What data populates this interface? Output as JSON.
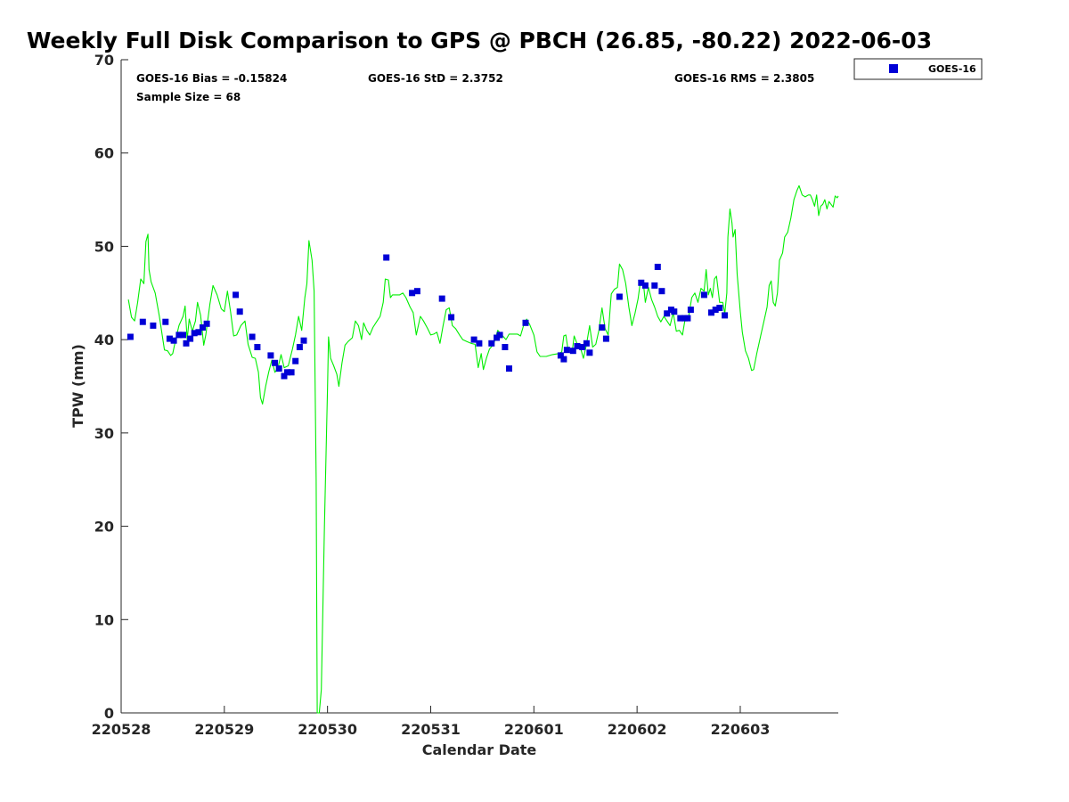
{
  "chart_data": {
    "type": "scatter",
    "title": "Weekly Full Disk Comparison to GPS @ PBCH (26.85, -80.22) 2022-06-03",
    "xlabel": "Calendar Date",
    "ylabel": "TPW (mm)",
    "xlim": [
      0,
      6.95
    ],
    "ylim": [
      0,
      70
    ],
    "x_tick_labels": [
      "220528",
      "220529",
      "220530",
      "220531",
      "220601",
      "220602",
      "220603"
    ],
    "x_ticks": [
      0,
      1,
      2,
      3,
      4,
      5,
      6
    ],
    "y_ticks": [
      0,
      10,
      20,
      30,
      40,
      50,
      60,
      70
    ],
    "grid": false,
    "legend": {
      "position": "top-right",
      "entries": [
        "GOES-16"
      ]
    },
    "stats": {
      "bias": "GOES-16 Bias = -0.15824",
      "std": "GOES-16 StD = 2.3752",
      "rms": "GOES-16 RMS = 2.3805",
      "sample": "Sample Size = 68"
    },
    "series": [
      {
        "name": "GOES-16",
        "kind": "scatter",
        "color": "#0000d6",
        "points": [
          [
            0.09,
            40.3
          ],
          [
            0.21,
            41.9
          ],
          [
            0.31,
            41.5
          ],
          [
            0.43,
            41.9
          ],
          [
            0.47,
            40.1
          ],
          [
            0.51,
            39.9
          ],
          [
            0.56,
            40.5
          ],
          [
            0.6,
            40.5
          ],
          [
            0.63,
            39.6
          ],
          [
            0.67,
            40.1
          ],
          [
            0.71,
            40.7
          ],
          [
            0.75,
            40.8
          ],
          [
            0.79,
            41.3
          ],
          [
            0.83,
            41.7
          ],
          [
            1.11,
            44.8
          ],
          [
            1.15,
            43.0
          ],
          [
            1.27,
            40.3
          ],
          [
            1.32,
            39.2
          ],
          [
            1.45,
            38.3
          ],
          [
            1.49,
            37.5
          ],
          [
            1.53,
            36.9
          ],
          [
            1.58,
            36.1
          ],
          [
            1.61,
            36.5
          ],
          [
            1.65,
            36.5
          ],
          [
            1.69,
            37.7
          ],
          [
            1.73,
            39.2
          ],
          [
            1.77,
            39.9
          ],
          [
            2.57,
            48.8
          ],
          [
            2.82,
            45.0
          ],
          [
            2.87,
            45.2
          ],
          [
            3.11,
            44.4
          ],
          [
            3.2,
            42.4
          ],
          [
            3.42,
            40.0
          ],
          [
            3.47,
            39.6
          ],
          [
            3.59,
            39.6
          ],
          [
            3.64,
            40.2
          ],
          [
            3.67,
            40.5
          ],
          [
            3.72,
            39.2
          ],
          [
            3.76,
            36.9
          ],
          [
            3.92,
            41.8
          ],
          [
            4.26,
            38.3
          ],
          [
            4.29,
            37.9
          ],
          [
            4.32,
            38.9
          ],
          [
            4.38,
            38.8
          ],
          [
            4.42,
            39.3
          ],
          [
            4.47,
            39.2
          ],
          [
            4.51,
            39.6
          ],
          [
            4.54,
            38.6
          ],
          [
            4.66,
            41.3
          ],
          [
            4.7,
            40.1
          ],
          [
            4.83,
            44.6
          ],
          [
            5.04,
            46.1
          ],
          [
            5.08,
            45.8
          ],
          [
            5.17,
            45.8
          ],
          [
            5.2,
            47.8
          ],
          [
            5.24,
            45.2
          ],
          [
            5.29,
            42.8
          ],
          [
            5.33,
            43.2
          ],
          [
            5.36,
            43.0
          ],
          [
            5.42,
            42.3
          ],
          [
            5.46,
            42.3
          ],
          [
            5.49,
            42.3
          ],
          [
            5.52,
            43.2
          ],
          [
            5.65,
            44.8
          ],
          [
            5.72,
            42.9
          ],
          [
            5.76,
            43.2
          ],
          [
            5.8,
            43.4
          ],
          [
            5.85,
            42.6
          ]
        ]
      },
      {
        "name": "",
        "kind": "line",
        "color": "#00ee00",
        "points": [
          [
            0.07,
            44.3
          ],
          [
            0.1,
            42.4
          ],
          [
            0.13,
            42.0
          ],
          [
            0.16,
            44.0
          ],
          [
            0.19,
            46.5
          ],
          [
            0.22,
            46.0
          ],
          [
            0.24,
            50.5
          ],
          [
            0.26,
            51.3
          ],
          [
            0.27,
            47.5
          ],
          [
            0.29,
            46.2
          ],
          [
            0.33,
            45.0
          ],
          [
            0.37,
            42.5
          ],
          [
            0.42,
            38.9
          ],
          [
            0.45,
            38.8
          ],
          [
            0.48,
            38.3
          ],
          [
            0.5,
            38.5
          ],
          [
            0.53,
            40.1
          ],
          [
            0.56,
            41.5
          ],
          [
            0.6,
            42.5
          ],
          [
            0.62,
            43.6
          ],
          [
            0.64,
            40.0
          ],
          [
            0.66,
            42.2
          ],
          [
            0.69,
            40.9
          ],
          [
            0.72,
            42.0
          ],
          [
            0.74,
            44.0
          ],
          [
            0.77,
            42.6
          ],
          [
            0.8,
            39.4
          ],
          [
            0.82,
            40.5
          ],
          [
            0.86,
            43.8
          ],
          [
            0.89,
            45.8
          ],
          [
            0.93,
            44.8
          ],
          [
            0.97,
            43.3
          ],
          [
            1.0,
            43.0
          ],
          [
            1.03,
            45.2
          ],
          [
            1.06,
            43.0
          ],
          [
            1.09,
            40.4
          ],
          [
            1.12,
            40.5
          ],
          [
            1.16,
            41.5
          ],
          [
            1.2,
            42.0
          ],
          [
            1.23,
            39.5
          ],
          [
            1.27,
            38.1
          ],
          [
            1.3,
            38.0
          ],
          [
            1.33,
            36.5
          ],
          [
            1.35,
            33.8
          ],
          [
            1.37,
            33.1
          ],
          [
            1.4,
            35.0
          ],
          [
            1.43,
            36.5
          ],
          [
            1.46,
            37.8
          ],
          [
            1.49,
            36.5
          ],
          [
            1.52,
            37.0
          ],
          [
            1.55,
            38.4
          ],
          [
            1.58,
            37.0
          ],
          [
            1.62,
            37.2
          ],
          [
            1.66,
            39.0
          ],
          [
            1.69,
            40.5
          ],
          [
            1.72,
            42.5
          ],
          [
            1.75,
            41.0
          ],
          [
            1.78,
            44.5
          ],
          [
            1.8,
            46.0
          ],
          [
            1.82,
            50.6
          ],
          [
            1.85,
            48.5
          ],
          [
            1.87,
            45.2
          ],
          [
            1.89,
            25.0
          ],
          [
            1.9,
            0.0
          ],
          [
            1.92,
            0.0
          ],
          [
            1.94,
            2.5
          ],
          [
            1.97,
            20.0
          ],
          [
            2.0,
            35.0
          ],
          [
            2.01,
            40.3
          ],
          [
            2.03,
            38.0
          ],
          [
            2.06,
            37.2
          ],
          [
            2.09,
            36.3
          ],
          [
            2.11,
            35.0
          ],
          [
            2.14,
            37.5
          ],
          [
            2.17,
            39.4
          ],
          [
            2.2,
            39.8
          ],
          [
            2.24,
            40.2
          ],
          [
            2.27,
            42.0
          ],
          [
            2.3,
            41.5
          ],
          [
            2.33,
            40.0
          ],
          [
            2.35,
            41.8
          ],
          [
            2.38,
            41.0
          ],
          [
            2.41,
            40.5
          ],
          [
            2.44,
            41.3
          ],
          [
            2.48,
            42.0
          ],
          [
            2.51,
            42.5
          ],
          [
            2.54,
            44.0
          ],
          [
            2.56,
            46.5
          ],
          [
            2.59,
            46.4
          ],
          [
            2.61,
            44.5
          ],
          [
            2.63,
            44.8
          ],
          [
            2.67,
            44.8
          ],
          [
            2.7,
            44.8
          ],
          [
            2.73,
            45.0
          ],
          [
            2.76,
            44.5
          ],
          [
            2.8,
            43.5
          ],
          [
            2.83,
            42.9
          ],
          [
            2.86,
            40.5
          ],
          [
            2.9,
            42.5
          ],
          [
            2.93,
            42.0
          ],
          [
            2.97,
            41.2
          ],
          [
            3.0,
            40.5
          ],
          [
            3.03,
            40.6
          ],
          [
            3.06,
            40.8
          ],
          [
            3.09,
            39.6
          ],
          [
            3.12,
            41.5
          ],
          [
            3.15,
            43.2
          ],
          [
            3.18,
            43.4
          ],
          [
            3.21,
            41.5
          ],
          [
            3.24,
            41.2
          ],
          [
            3.28,
            40.5
          ],
          [
            3.31,
            40.0
          ],
          [
            3.35,
            39.8
          ],
          [
            3.39,
            39.6
          ],
          [
            3.43,
            39.5
          ],
          [
            3.46,
            37.0
          ],
          [
            3.49,
            38.5
          ],
          [
            3.51,
            36.8
          ],
          [
            3.54,
            38.0
          ],
          [
            3.57,
            39.0
          ],
          [
            3.61,
            39.5
          ],
          [
            3.65,
            41.0
          ],
          [
            3.69,
            40.5
          ],
          [
            3.73,
            40.0
          ],
          [
            3.76,
            40.6
          ],
          [
            3.8,
            40.6
          ],
          [
            3.84,
            40.6
          ],
          [
            3.87,
            40.4
          ],
          [
            3.9,
            41.5
          ],
          [
            3.93,
            42.2
          ],
          [
            3.96,
            41.6
          ],
          [
            4.0,
            40.5
          ],
          [
            4.03,
            38.7
          ],
          [
            4.06,
            38.2
          ],
          [
            4.12,
            38.2
          ],
          [
            4.18,
            38.4
          ],
          [
            4.24,
            38.5
          ],
          [
            4.27,
            38.7
          ],
          [
            4.29,
            40.4
          ],
          [
            4.31,
            40.5
          ],
          [
            4.33,
            39.0
          ],
          [
            4.35,
            38.9
          ],
          [
            4.37,
            38.6
          ],
          [
            4.39,
            40.4
          ],
          [
            4.42,
            39.5
          ],
          [
            4.45,
            39.2
          ],
          [
            4.48,
            38.0
          ],
          [
            4.51,
            39.5
          ],
          [
            4.54,
            41.5
          ],
          [
            4.57,
            39.2
          ],
          [
            4.6,
            39.5
          ],
          [
            4.63,
            41.0
          ],
          [
            4.66,
            43.4
          ],
          [
            4.69,
            41.2
          ],
          [
            4.72,
            40.5
          ],
          [
            4.75,
            44.9
          ],
          [
            4.78,
            45.4
          ],
          [
            4.81,
            45.6
          ],
          [
            4.83,
            48.1
          ],
          [
            4.86,
            47.5
          ],
          [
            4.89,
            46.0
          ],
          [
            4.92,
            43.5
          ],
          [
            4.95,
            41.5
          ],
          [
            4.98,
            42.8
          ],
          [
            5.01,
            44.4
          ],
          [
            5.03,
            46.0
          ],
          [
            5.06,
            46.2
          ],
          [
            5.08,
            44.0
          ],
          [
            5.11,
            45.6
          ],
          [
            5.14,
            44.3
          ],
          [
            5.17,
            43.5
          ],
          [
            5.2,
            42.5
          ],
          [
            5.23,
            41.9
          ],
          [
            5.26,
            42.5
          ],
          [
            5.29,
            42.0
          ],
          [
            5.32,
            41.5
          ],
          [
            5.35,
            42.9
          ],
          [
            5.38,
            40.9
          ],
          [
            5.41,
            41.0
          ],
          [
            5.44,
            40.5
          ],
          [
            5.47,
            42.5
          ],
          [
            5.5,
            42.5
          ],
          [
            5.53,
            44.5
          ],
          [
            5.56,
            45.0
          ],
          [
            5.59,
            44.0
          ],
          [
            5.62,
            45.5
          ],
          [
            5.65,
            45.2
          ],
          [
            5.67,
            47.5
          ],
          [
            5.69,
            44.8
          ],
          [
            5.71,
            45.5
          ],
          [
            5.73,
            44.5
          ],
          [
            5.75,
            46.5
          ],
          [
            5.77,
            46.8
          ],
          [
            5.8,
            44.0
          ],
          [
            5.83,
            44.0
          ],
          [
            5.85,
            42.8
          ],
          [
            5.87,
            45.0
          ],
          [
            5.88,
            51.0
          ],
          [
            5.9,
            54.0
          ],
          [
            5.92,
            52.5
          ],
          [
            5.93,
            51.0
          ],
          [
            5.95,
            51.8
          ],
          [
            5.97,
            47.0
          ],
          [
            6.0,
            43.0
          ],
          [
            6.02,
            40.8
          ],
          [
            6.05,
            38.8
          ],
          [
            6.08,
            38.0
          ],
          [
            6.11,
            36.7
          ],
          [
            6.13,
            36.8
          ],
          [
            6.16,
            38.5
          ],
          [
            6.2,
            40.5
          ],
          [
            6.23,
            42.0
          ],
          [
            6.26,
            43.5
          ],
          [
            6.28,
            45.8
          ],
          [
            6.3,
            46.3
          ],
          [
            6.32,
            44.0
          ],
          [
            6.34,
            43.6
          ],
          [
            6.36,
            45.0
          ],
          [
            6.38,
            48.5
          ],
          [
            6.41,
            49.3
          ],
          [
            6.43,
            51.0
          ],
          [
            6.46,
            51.5
          ],
          [
            6.49,
            53.0
          ],
          [
            6.52,
            55.0
          ],
          [
            6.55,
            56.0
          ],
          [
            6.57,
            56.5
          ],
          [
            6.6,
            55.5
          ],
          [
            6.63,
            55.3
          ],
          [
            6.66,
            55.5
          ],
          [
            6.68,
            55.5
          ],
          [
            6.7,
            55.0
          ],
          [
            6.72,
            54.3
          ],
          [
            6.74,
            55.5
          ],
          [
            6.76,
            53.3
          ],
          [
            6.78,
            54.3
          ],
          [
            6.8,
            54.5
          ],
          [
            6.82,
            55.0
          ],
          [
            6.84,
            54.0
          ],
          [
            6.86,
            54.8
          ],
          [
            6.88,
            54.5
          ],
          [
            6.9,
            54.2
          ],
          [
            6.92,
            55.4
          ],
          [
            6.94,
            55.2
          ],
          [
            6.95,
            55.4
          ]
        ]
      }
    ]
  }
}
